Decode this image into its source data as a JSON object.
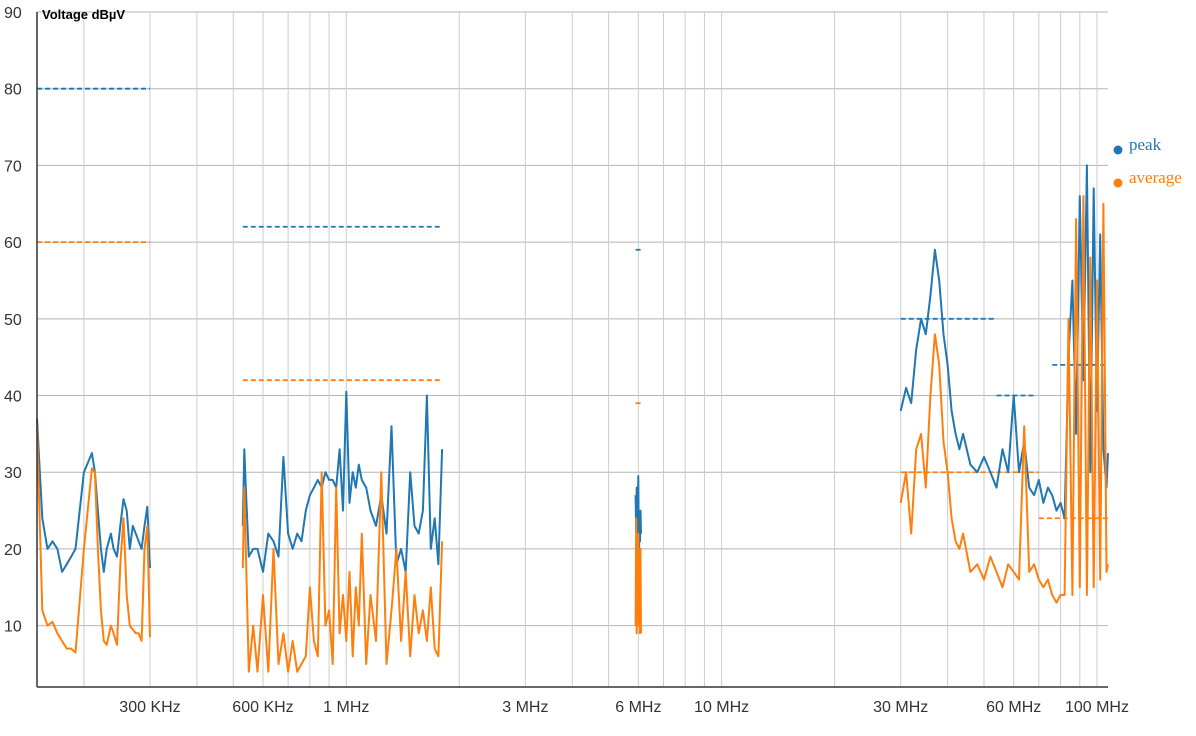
{
  "chart_data": {
    "type": "line",
    "ylabel": "Voltage dBµV",
    "ylim": [
      2,
      90
    ],
    "x_scale": "log",
    "xlim_hz": [
      150000,
      107000000
    ],
    "y_ticks": [
      10,
      20,
      30,
      40,
      50,
      60,
      70,
      80,
      90
    ],
    "y_tick_labels": [
      "10",
      "20",
      "30",
      "40",
      "50",
      "60",
      "70",
      "80",
      "90"
    ],
    "x_ticks": [
      {
        "label": "300 KHz",
        "hz": 300000
      },
      {
        "label": "600 KHz",
        "hz": 600000
      },
      {
        "label": "1 MHz",
        "hz": 1000000
      },
      {
        "label": "3 MHz",
        "hz": 3000000
      },
      {
        "label": "6 MHz",
        "hz": 6000000
      },
      {
        "label": "10 MHz",
        "hz": 10000000
      },
      {
        "label": "30 MHz",
        "hz": 30000000
      },
      {
        "label": "60 MHz",
        "hz": 60000000
      },
      {
        "label": "100 MHz",
        "hz": 100000000
      }
    ],
    "grid": true,
    "legend_position": "right",
    "legend": [
      {
        "name": "peak",
        "color": "#1f77b4"
      },
      {
        "name": "average",
        "color": "#ff7f0e"
      }
    ],
    "limit_lines": [
      {
        "series": "peak",
        "x": [
          150000,
          300000
        ],
        "y": 80
      },
      {
        "series": "average",
        "x": [
          150000,
          300000
        ],
        "y": 60
      },
      {
        "series": "peak",
        "x": [
          530000,
          1800000
        ],
        "y": 62
      },
      {
        "series": "average",
        "x": [
          530000,
          1800000
        ],
        "y": 42
      },
      {
        "series": "peak",
        "x": [
          5900000,
          6100000
        ],
        "y": 59
      },
      {
        "series": "average",
        "x": [
          5900000,
          6100000
        ],
        "y": 39
      },
      {
        "series": "peak",
        "x": [
          30000000,
          54000000
        ],
        "y": 50
      },
      {
        "series": "average",
        "x": [
          30000000,
          70000000
        ],
        "y": 30
      },
      {
        "series": "peak",
        "x": [
          54000000,
          68000000
        ],
        "y": 40
      },
      {
        "series": "peak",
        "x": [
          76000000,
          107000000
        ],
        "y": 44
      },
      {
        "series": "average",
        "x": [
          70000000,
          107000000
        ],
        "y": 24
      }
    ],
    "series": [
      {
        "name": "peak",
        "color": "#1f77b4",
        "segments": [
          {
            "x": [
              150000,
              155000,
              160000,
              165000,
              170000,
              175000,
              180000,
              185000,
              190000,
              200000,
              210000,
              214000,
              218000,
              222000,
              226000,
              230000,
              236000,
              240000,
              245000,
              250000,
              255000,
              260000,
              265000,
              270000,
              275000,
              280000,
              285000,
              290000,
              295000,
              300000
            ],
            "y": [
              37,
              24,
              20,
              21,
              20,
              17,
              18,
              19,
              20,
              30,
              32.5,
              30,
              25,
              20,
              17,
              20,
              22,
              20,
              19,
              23,
              26.5,
              25,
              20,
              23,
              22,
              21,
              20,
              23,
              25.5,
              17.5
            ]
          },
          {
            "x": [
              530000,
              535000,
              540000,
              550000,
              565000,
              580000,
              600000,
              620000,
              640000,
              660000,
              680000,
              700000,
              720000,
              740000,
              760000,
              780000,
              800000,
              820000,
              840000,
              860000,
              880000,
              900000,
              920000,
              940000,
              960000,
              980000,
              1000000,
              1020000,
              1040000,
              1060000,
              1080000,
              1100000,
              1130000,
              1160000,
              1200000,
              1240000,
              1280000,
              1320000,
              1360000,
              1400000,
              1440000,
              1480000,
              1520000,
              1560000,
              1600000,
              1640000,
              1680000,
              1720000,
              1760000,
              1800000
            ],
            "y": [
              23,
              33,
              28,
              19,
              20,
              20,
              17,
              22,
              21,
              19,
              32,
              22,
              20,
              22,
              21,
              25,
              27,
              28,
              29,
              28,
              30,
              29,
              29,
              28,
              33,
              25,
              40.5,
              26,
              30,
              28,
              31,
              29,
              28,
              25,
              23,
              27,
              22,
              36,
              18,
              20,
              17,
              30,
              23,
              22,
              25,
              40,
              20,
              24,
              18,
              33
            ]
          },
          {
            "x": [
              5900000,
              5920000,
              5940000,
              5960000,
              5980000,
              6000000,
              6020000,
              6040000,
              6060000,
              6080000,
              6100000
            ],
            "y": [
              27,
              22,
              28,
              19,
              24,
              29.5,
              18,
              23,
              21,
              25,
              22
            ]
          },
          {
            "x": [
              30000000,
              31000000,
              32000000,
              33000000,
              34000000,
              35000000,
              36000000,
              37000000,
              38000000,
              39000000,
              40000000,
              41000000,
              42000000,
              43000000,
              44000000,
              46000000,
              48000000,
              50000000,
              52000000,
              54000000,
              56000000,
              58000000,
              60000000,
              62000000,
              64000000,
              66000000,
              68000000,
              70000000,
              72000000,
              74000000,
              76000000,
              78000000,
              80000000,
              82000000,
              84000000,
              86000000,
              88000000,
              90000000,
              92000000,
              94000000,
              96000000,
              98000000,
              100000000,
              102000000,
              104000000,
              106000000,
              107000000
            ],
            "y": [
              38,
              41,
              39,
              46,
              50,
              48,
              53,
              59,
              55,
              48,
              44,
              38,
              35,
              33,
              35,
              31,
              30,
              32,
              30,
              28,
              33,
              30,
              40,
              30,
              34,
              28,
              27,
              29,
              26,
              28,
              27,
              25,
              26,
              24,
              45,
              55,
              35,
              66,
              42,
              70,
              30,
              67,
              38,
              61,
              33,
              28,
              32.5
            ]
          }
        ]
      },
      {
        "name": "average",
        "color": "#ff7f0e",
        "segments": [
          {
            "x": [
              150000,
              155000,
              160000,
              165000,
              170000,
              175000,
              180000,
              185000,
              190000,
              200000,
              210000,
              214000,
              218000,
              222000,
              226000,
              230000,
              236000,
              240000,
              245000,
              250000,
              255000,
              260000,
              265000,
              270000,
              275000,
              280000,
              285000,
              290000,
              295000,
              300000
            ],
            "y": [
              36,
              12,
              10,
              10.5,
              9,
              8,
              7,
              7,
              6.5,
              20,
              30.5,
              30,
              20,
              12,
              8,
              7.5,
              10,
              9,
              7.5,
              18,
              24,
              14,
              10,
              9.5,
              9,
              9,
              8,
              20,
              23,
              8.5
            ]
          },
          {
            "x": [
              530000,
              535000,
              540000,
              550000,
              565000,
              580000,
              600000,
              620000,
              640000,
              660000,
              680000,
              700000,
              720000,
              740000,
              760000,
              780000,
              800000,
              820000,
              840000,
              860000,
              880000,
              900000,
              920000,
              940000,
              960000,
              980000,
              1000000,
              1020000,
              1040000,
              1060000,
              1080000,
              1100000,
              1130000,
              1160000,
              1200000,
              1240000,
              1280000,
              1320000,
              1360000,
              1400000,
              1440000,
              1480000,
              1520000,
              1560000,
              1600000,
              1640000,
              1680000,
              1720000,
              1760000,
              1800000
            ],
            "y": [
              17.5,
              28,
              20,
              4,
              10,
              4,
              14,
              4,
              20,
              5,
              9,
              4,
              8,
              4,
              5,
              6,
              15,
              8,
              6,
              30,
              10,
              12,
              5,
              28,
              9,
              14,
              8,
              17,
              6,
              15,
              10,
              22,
              5,
              14,
              8,
              30,
              5,
              12,
              20,
              8,
              17,
              6,
              14,
              9,
              12,
              8,
              15,
              7,
              6,
              21
            ]
          },
          {
            "x": [
              5900000,
              5920000,
              5940000,
              5960000,
              5980000,
              6000000,
              6020000,
              6040000,
              6060000,
              6080000,
              6100000
            ],
            "y": [
              10,
              24,
              9,
              18,
              11,
              22,
              10,
              15,
              9,
              20,
              9
            ]
          },
          {
            "x": [
              30000000,
              31000000,
              32000000,
              33000000,
              34000000,
              35000000,
              36000000,
              37000000,
              38000000,
              39000000,
              40000000,
              41000000,
              42000000,
              43000000,
              44000000,
              46000000,
              48000000,
              50000000,
              52000000,
              54000000,
              56000000,
              58000000,
              60000000,
              62000000,
              64000000,
              66000000,
              68000000,
              70000000,
              72000000,
              74000000,
              76000000,
              78000000,
              80000000,
              82000000,
              84000000,
              86000000,
              88000000,
              90000000,
              92000000,
              94000000,
              96000000,
              98000000,
              100000000,
              102000000,
              104000000,
              106000000,
              107000000
            ],
            "y": [
              26,
              30,
              22,
              33,
              35,
              28,
              40,
              48,
              44,
              34,
              30,
              24,
              21,
              20,
              22,
              17,
              18,
              16,
              19,
              17,
              15,
              18,
              17,
              16,
              36,
              17,
              18,
              16,
              15,
              16,
              14,
              13,
              14,
              14,
              50,
              14,
              63,
              15,
              66,
              14,
              58,
              15,
              55,
              16,
              65,
              17,
              18
            ]
          }
        ]
      }
    ]
  }
}
